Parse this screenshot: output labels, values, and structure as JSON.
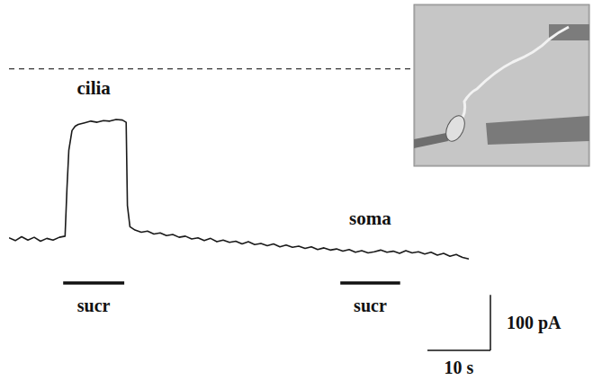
{
  "chart_data": {
    "type": "line",
    "color": "#1a1a1a",
    "tick_labels": false,
    "grid": false,
    "xlim": [
      0,
      93
    ],
    "ylim": [
      -270,
      430
    ],
    "x": [
      0,
      1,
      2,
      3,
      4,
      5,
      6,
      7,
      8,
      8.9,
      9.2,
      9.5,
      10,
      10.5,
      11,
      12,
      13,
      14,
      15,
      16,
      17,
      18,
      18.6,
      18.8,
      19.2,
      20,
      21,
      22,
      23,
      24,
      25,
      26,
      27,
      28,
      29,
      30,
      31,
      32,
      33,
      34,
      35,
      36,
      37,
      38,
      39,
      40,
      41,
      42,
      43,
      44,
      45,
      46,
      47,
      48,
      49,
      50,
      51,
      52,
      53,
      54,
      55,
      56,
      57,
      58,
      59,
      60,
      61,
      62,
      63,
      64,
      65,
      66,
      67,
      68,
      69,
      70,
      71,
      72,
      73
    ],
    "values": [
      2,
      -3,
      4,
      -2,
      3,
      -4,
      1,
      -2,
      3,
      5,
      90,
      160,
      195,
      203,
      206,
      209,
      212,
      210,
      213,
      212,
      215,
      214,
      210,
      60,
      22,
      16,
      12,
      14,
      9,
      11,
      6,
      8,
      3,
      5,
      0,
      2,
      -3,
      1,
      -5,
      -2,
      -6,
      -4,
      -9,
      -5,
      -10,
      -8,
      -12,
      -9,
      -14,
      -11,
      -15,
      -13,
      -17,
      -14,
      -19,
      -16,
      -20,
      -18,
      -22,
      -19,
      -24,
      -21,
      -25,
      -23,
      -20,
      -24,
      -22,
      -26,
      -21,
      -25,
      -23,
      -27,
      -24,
      -29,
      -26,
      -31,
      -28,
      -33,
      -36
    ],
    "reference_line": 306,
    "stimuli": [
      {
        "label": "sucr",
        "site": "cilia",
        "start": 8.6,
        "end": 18.3
      },
      {
        "label": "sucr",
        "site": "soma",
        "start": 52.6,
        "end": 62.1
      }
    ],
    "scale_bars": {
      "x": {
        "value": 10,
        "label": "10 s"
      },
      "y": {
        "value": 100,
        "label": "100 pA"
      }
    }
  }
}
